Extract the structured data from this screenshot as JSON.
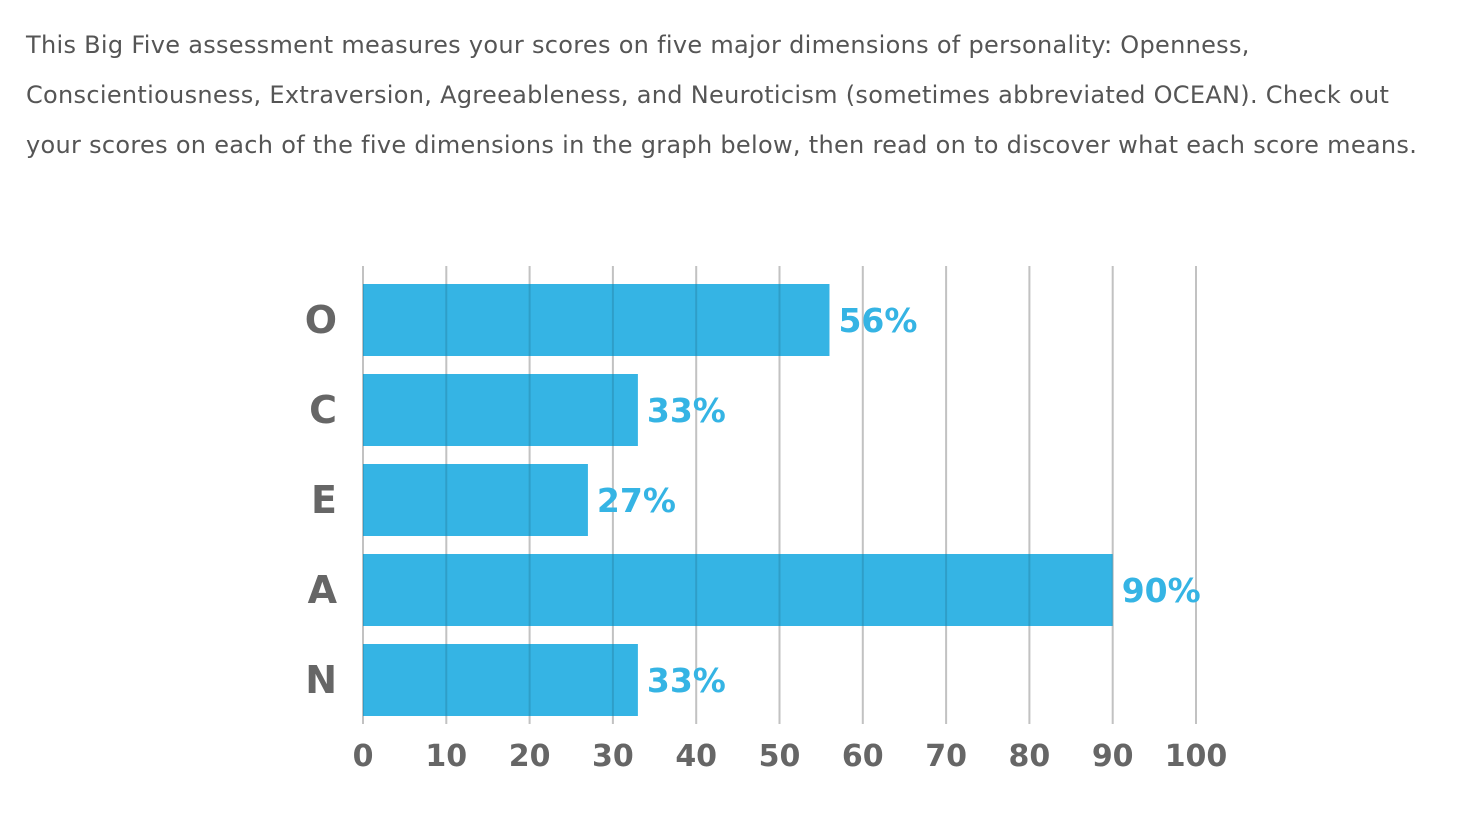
{
  "intro": {
    "text": "This Big Five assessment measures your scores on five major dimensions of personality: Openness, Conscientiousness, Extraversion, Agreeableness, and Neuroticism (sometimes abbreviated OCEAN). Check out your scores on each of the five dimensions in the graph below, then read on to discover what each score means."
  },
  "chart_data": {
    "type": "bar",
    "orientation": "horizontal",
    "categories": [
      "O",
      "C",
      "E",
      "A",
      "N"
    ],
    "values": [
      56,
      33,
      27,
      90,
      33
    ],
    "data_labels": [
      "56%",
      "33%",
      "27%",
      "90%",
      "33%"
    ],
    "xlim": [
      0,
      100
    ],
    "x_ticks": [
      0,
      10,
      20,
      30,
      40,
      50,
      60,
      70,
      80,
      90,
      100
    ],
    "title": "",
    "xlabel": "",
    "ylabel": "",
    "grid": true,
    "legend": "none",
    "colors": {
      "bar": "#35b4e4",
      "data_label": "#35b4e4",
      "category_label": "#666666",
      "tick_label": "#666666",
      "gridline": "#dddddd"
    }
  }
}
